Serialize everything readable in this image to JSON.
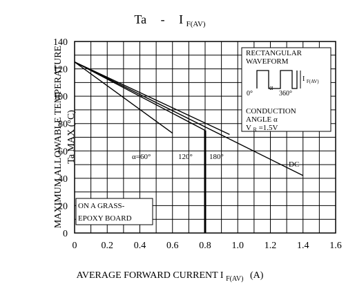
{
  "chart_data": {
    "type": "line",
    "title": {
      "left": "Ta",
      "dash": "-",
      "right_main": "I",
      "right_sub": "F(AV)"
    },
    "xlabel": {
      "main": "AVERAGE FORWARD CURRENT I",
      "sub": "F(AV)",
      "unit": "(A)"
    },
    "ylabel": {
      "line1": "MAXIMUM ALLOWABLE TEMPERATURE",
      "line2": "Ta MAX (°C)"
    },
    "x_ticks": [
      "0",
      "0.2",
      "0.4",
      "0.6",
      "0.8",
      "1.0",
      "1.2",
      "1.4",
      "1.6"
    ],
    "y_ticks": [
      "0",
      "20",
      "40",
      "60",
      "80",
      "100",
      "120",
      "140"
    ],
    "xlim": [
      0,
      1.6
    ],
    "ylim": [
      0,
      140
    ],
    "grid": true,
    "series": [
      {
        "name": "α=60°",
        "x": [
          0,
          0.6
        ],
        "y": [
          125,
          73
        ]
      },
      {
        "name": "120°",
        "x": [
          0,
          0.8
        ],
        "y": [
          125,
          75
        ]
      },
      {
        "name": "180°",
        "x": [
          0,
          0.95
        ],
        "y": [
          125,
          72
        ]
      },
      {
        "name": "DC",
        "x": [
          0,
          1.4
        ],
        "y": [
          125,
          42
        ]
      }
    ],
    "vertical_marker": {
      "x": 0.8,
      "y_from": 0,
      "y_to": 75
    },
    "annotations": {
      "waveform_title_1": "RECTANGULAR",
      "waveform_title_2": "WAVEFORM",
      "current_label_main": "I",
      "current_label_sub": "F(AV)",
      "zero_angle": "0°",
      "alpha_symbol": "α",
      "angle_360": "360°",
      "conduction_1": "CONDUCTION",
      "conduction_2": "ANGLE α",
      "vr_main": "V",
      "vr_sub": "R",
      "vr_value": "=1.5V",
      "board_1": "ON A GRASS-",
      "board_2": "EPOXY BOARD",
      "label_dc": "DC"
    }
  }
}
